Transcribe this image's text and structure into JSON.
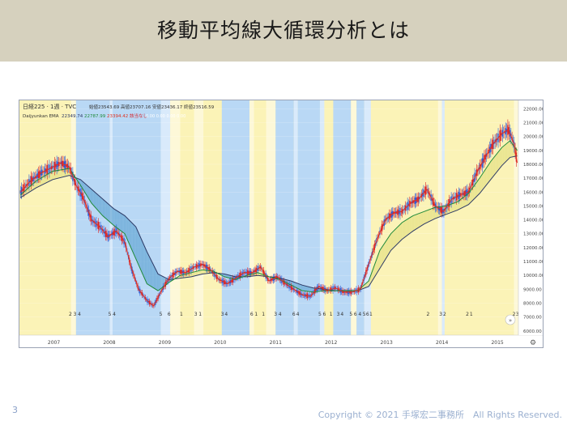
{
  "page": {
    "title": "移動平均線大循環分析とは",
    "slide_number": "3",
    "copyright": "Copyright © 2021 手塚宏二事務所　All Rights Reserved."
  },
  "colors": {
    "header_bg": "#d6d1be",
    "yellow_band": "#fbf3b7",
    "pale_yellow_band": "#fdf8d8",
    "blue_band": "#b9d8f5",
    "pale_blue_band": "#d9eafb",
    "candle_up": "#2d5bd6",
    "candle_down": "#d8232a",
    "ema_short": "#e0311f",
    "ema_mid": "#1f8a3a",
    "ema_long": "#2d3a66",
    "ribbon_bear": "#6aa9d6",
    "ribbon_bull": "#e8e38c"
  },
  "legend": {
    "symbol": "日経225 · 1週 · TVC",
    "ohlc": "始値23543.69 高値23707.16 安値23436.17 終値23516.59",
    "indicator_name": "Daijyunkan EMA",
    "ema_short_value": "22349.74",
    "ema_mid_value": "22787.99",
    "ema_long_value": "23394.42",
    "status": "該当なし",
    "extra": "0.00  0.00  0.00  0.00"
  },
  "chart_data": {
    "type": "line",
    "title": "",
    "x_ticks": [
      "2007",
      "2008",
      "2009",
      "2010",
      "2011",
      "2012",
      "2013",
      "2014",
      "2015"
    ],
    "y_ticks": [
      6000,
      7000,
      8000,
      9000,
      10000,
      11000,
      12000,
      13000,
      14000,
      15000,
      16000,
      17000,
      18000,
      19000,
      20000,
      21000,
      22000
    ],
    "ylim": [
      5700,
      22600
    ],
    "xlim": [
      2006.7,
      2015.7
    ],
    "stage_markers": [
      {
        "x": 2007.62,
        "label": "2"
      },
      {
        "x": 2007.7,
        "label": "3"
      },
      {
        "x": 2007.78,
        "label": "4"
      },
      {
        "x": 2008.33,
        "label": "5"
      },
      {
        "x": 2008.41,
        "label": "4"
      },
      {
        "x": 2009.25,
        "label": "5"
      },
      {
        "x": 2009.4,
        "label": "6"
      },
      {
        "x": 2009.62,
        "label": "1"
      },
      {
        "x": 2009.88,
        "label": "3"
      },
      {
        "x": 2009.96,
        "label": "1"
      },
      {
        "x": 2010.36,
        "label": "3"
      },
      {
        "x": 2010.43,
        "label": "4"
      },
      {
        "x": 2010.89,
        "label": "6"
      },
      {
        "x": 2010.97,
        "label": "1"
      },
      {
        "x": 2011.1,
        "label": "1"
      },
      {
        "x": 2011.32,
        "label": "3"
      },
      {
        "x": 2011.4,
        "label": "4"
      },
      {
        "x": 2011.65,
        "label": "6"
      },
      {
        "x": 2011.72,
        "label": "4"
      },
      {
        "x": 2012.12,
        "label": "5"
      },
      {
        "x": 2012.2,
        "label": "6"
      },
      {
        "x": 2012.32,
        "label": "1"
      },
      {
        "x": 2012.45,
        "label": "3"
      },
      {
        "x": 2012.52,
        "label": "4"
      },
      {
        "x": 2012.68,
        "label": "5"
      },
      {
        "x": 2012.76,
        "label": "6"
      },
      {
        "x": 2012.84,
        "label": "4"
      },
      {
        "x": 2012.92,
        "label": "5"
      },
      {
        "x": 2012.98,
        "label": "6"
      },
      {
        "x": 2013.04,
        "label": "1"
      },
      {
        "x": 2014.07,
        "label": "2"
      },
      {
        "x": 2014.3,
        "label": "3"
      },
      {
        "x": 2014.37,
        "label": "2"
      },
      {
        "x": 2014.78,
        "label": "2"
      },
      {
        "x": 2014.85,
        "label": "1"
      },
      {
        "x": 2015.62,
        "label": "2"
      },
      {
        "x": 2015.68,
        "label": "3"
      }
    ],
    "series": [
      {
        "x": [
          2006.72,
          2006.9,
          2007.1,
          2007.3,
          2007.45,
          2007.6,
          2007.72,
          2007.85,
          2008.0,
          2008.15,
          2008.3,
          2008.45,
          2008.6,
          2008.72,
          2008.85,
          2009.0,
          2009.12,
          2009.25,
          2009.4,
          2009.55,
          2009.7,
          2009.85,
          2010.0,
          2010.15,
          2010.3,
          2010.45,
          2010.6,
          2010.75,
          2010.9,
          2011.05,
          2011.2,
          2011.35,
          2011.5,
          2011.65,
          2011.8,
          2011.95,
          2012.1,
          2012.25,
          2012.4,
          2012.55,
          2012.7,
          2012.85,
          2013.0,
          2013.15,
          2013.3,
          2013.45,
          2013.6,
          2013.75,
          2013.9,
          2014.05,
          2014.2,
          2014.35,
          2014.5,
          2014.65,
          2014.8,
          2014.95,
          2015.1,
          2015.25,
          2015.4,
          2015.52,
          2015.62,
          2015.68
        ],
        "values": [
          16000,
          16800,
          17400,
          17800,
          18100,
          17800,
          16500,
          15600,
          14000,
          13500,
          12800,
          13200,
          12400,
          10500,
          9000,
          8200,
          7800,
          8800,
          9800,
          10300,
          10200,
          10600,
          10800,
          10400,
          9700,
          9400,
          9800,
          10200,
          10200,
          10600,
          9600,
          9900,
          9400,
          9000,
          8600,
          8500,
          9200,
          8900,
          9100,
          8800,
          8800,
          9000,
          10800,
          12600,
          14000,
          14500,
          14600,
          15200,
          15500,
          16200,
          15000,
          14600,
          15500,
          15800,
          16000,
          17400,
          18500,
          19500,
          20200,
          20500,
          19500,
          18100
        ]
      },
      {
        "x": [
          2006.72,
          2007.0,
          2007.3,
          2007.6,
          2007.8,
          2008.0,
          2008.2,
          2008.4,
          2008.6,
          2008.8,
          2009.0,
          2009.2,
          2009.4,
          2009.6,
          2009.8,
          2010.0,
          2010.2,
          2010.4,
          2010.6,
          2010.8,
          2011.0,
          2011.2,
          2011.4,
          2011.6,
          2011.8,
          2012.0,
          2012.2,
          2012.4,
          2012.6,
          2012.8,
          2013.0,
          2013.2,
          2013.4,
          2013.6,
          2013.8,
          2014.0,
          2014.2,
          2014.4,
          2014.6,
          2014.8,
          2015.0,
          2015.2,
          2015.4,
          2015.55,
          2015.68
        ],
        "values": [
          15800,
          16800,
          17500,
          17700,
          16500,
          15200,
          14300,
          13600,
          13000,
          11200,
          9400,
          8900,
          9500,
          10000,
          10200,
          10400,
          10300,
          9900,
          9700,
          10000,
          10200,
          9900,
          9700,
          9300,
          8900,
          8800,
          8900,
          8900,
          8900,
          8900,
          9600,
          11800,
          13000,
          13800,
          14300,
          14600,
          14900,
          15000,
          15300,
          15900,
          17000,
          18200,
          19200,
          19700,
          19000
        ]
      },
      {
        "x": [
          2006.72,
          2007.0,
          2007.3,
          2007.6,
          2007.8,
          2008.0,
          2008.2,
          2008.4,
          2008.6,
          2008.8,
          2009.0,
          2009.2,
          2009.4,
          2009.6,
          2009.8,
          2010.0,
          2010.2,
          2010.4,
          2010.6,
          2010.8,
          2011.0,
          2011.2,
          2011.4,
          2011.6,
          2011.8,
          2012.0,
          2012.2,
          2012.4,
          2012.6,
          2012.8,
          2013.0,
          2013.2,
          2013.4,
          2013.6,
          2013.8,
          2014.0,
          2014.2,
          2014.4,
          2014.6,
          2014.8,
          2015.0,
          2015.2,
          2015.4,
          2015.55,
          2015.68
        ],
        "values": [
          15600,
          16300,
          16900,
          17200,
          16900,
          16200,
          15500,
          14800,
          14300,
          13500,
          11700,
          10100,
          9700,
          9800,
          9900,
          10100,
          10200,
          10100,
          9900,
          9900,
          10000,
          9900,
          9800,
          9600,
          9300,
          9100,
          9000,
          8900,
          8900,
          8900,
          9200,
          10500,
          11800,
          12600,
          13200,
          13700,
          14100,
          14400,
          14700,
          15100,
          15900,
          16900,
          17900,
          18500,
          18600
        ]
      }
    ],
    "shading": [
      {
        "from": 2006.72,
        "to": 2007.63,
        "color": "yellow"
      },
      {
        "from": 2007.63,
        "to": 2007.72,
        "color": "pale_yellow"
      },
      {
        "from": 2007.72,
        "to": 2008.33,
        "color": "blue"
      },
      {
        "from": 2008.33,
        "to": 2008.38,
        "color": "pale_blue"
      },
      {
        "from": 2008.38,
        "to": 2009.25,
        "color": "blue"
      },
      {
        "from": 2009.25,
        "to": 2009.42,
        "color": "pale_blue"
      },
      {
        "from": 2009.42,
        "to": 2009.6,
        "color": "pale_yellow"
      },
      {
        "from": 2009.6,
        "to": 2009.85,
        "color": "yellow"
      },
      {
        "from": 2009.85,
        "to": 2010.02,
        "color": "pale_yellow"
      },
      {
        "from": 2010.02,
        "to": 2010.35,
        "color": "yellow"
      },
      {
        "from": 2010.35,
        "to": 2010.85,
        "color": "blue"
      },
      {
        "from": 2010.85,
        "to": 2010.93,
        "color": "pale_yellow"
      },
      {
        "from": 2010.93,
        "to": 2011.15,
        "color": "yellow"
      },
      {
        "from": 2011.15,
        "to": 2011.32,
        "color": "pale_yellow"
      },
      {
        "from": 2011.32,
        "to": 2011.65,
        "color": "blue"
      },
      {
        "from": 2011.65,
        "to": 2011.72,
        "color": "pale_blue"
      },
      {
        "from": 2011.72,
        "to": 2012.12,
        "color": "blue"
      },
      {
        "from": 2012.12,
        "to": 2012.2,
        "color": "pale_blue"
      },
      {
        "from": 2012.2,
        "to": 2012.36,
        "color": "yellow"
      },
      {
        "from": 2012.36,
        "to": 2012.68,
        "color": "blue"
      },
      {
        "from": 2012.68,
        "to": 2012.78,
        "color": "pale_yellow"
      },
      {
        "from": 2012.78,
        "to": 2012.92,
        "color": "blue"
      },
      {
        "from": 2012.92,
        "to": 2013.04,
        "color": "pale_blue"
      },
      {
        "from": 2013.04,
        "to": 2014.25,
        "color": "yellow"
      },
      {
        "from": 2014.25,
        "to": 2014.32,
        "color": "pale_yellow"
      },
      {
        "from": 2014.32,
        "to": 2014.37,
        "color": "pale_blue"
      },
      {
        "from": 2014.37,
        "to": 2015.62,
        "color": "yellow"
      },
      {
        "from": 2015.62,
        "to": 2015.7,
        "color": "pale_yellow"
      }
    ]
  }
}
